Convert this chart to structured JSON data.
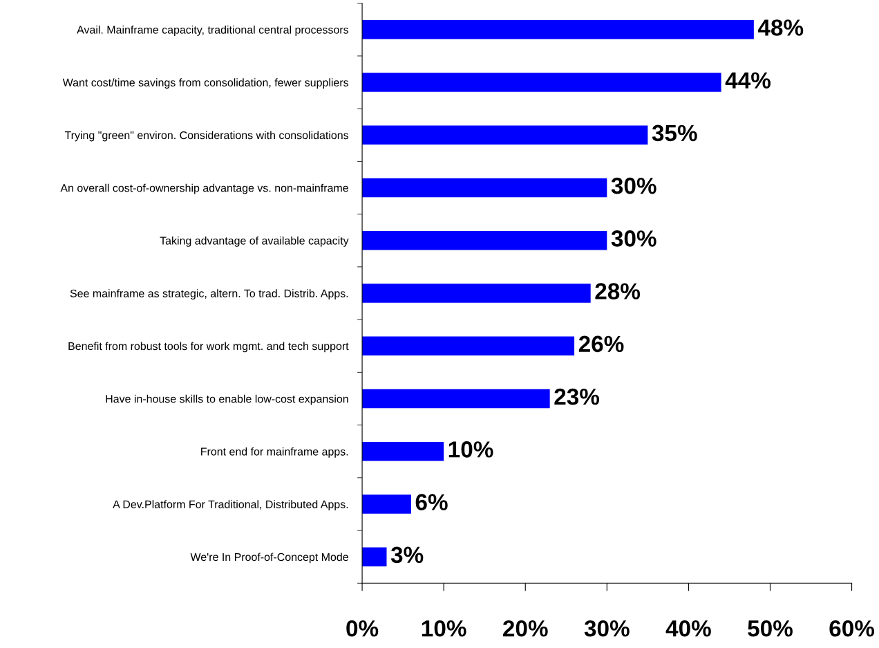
{
  "chart_data": {
    "type": "bar",
    "orientation": "horizontal",
    "categories": [
      "Avail. Mainframe capacity, traditional central processors",
      "Want cost/time savings from consolidation, fewer suppliers",
      "Trying \"green\" environ. Considerations with consolidations",
      "An overall cost-of-ownership advantage vs. non-mainframe",
      "Taking advantage of available capacity",
      "See mainframe as strategic, altern. To trad. Distrib. Apps.",
      "Benefit from robust tools for work mgmt. and tech support",
      "Have in-house skills to enable low-cost expansion",
      "Front end for mainframe apps.",
      "A Dev.Platform For Traditional, Distributed Apps.",
      "We're In Proof-of-Concept Mode"
    ],
    "values": [
      48,
      44,
      35,
      30,
      30,
      28,
      26,
      23,
      10,
      6,
      3
    ],
    "value_labels": [
      "48%",
      "44%",
      "35%",
      "30%",
      "30%",
      "28%",
      "26%",
      "23%",
      "10%",
      "6%",
      "3%"
    ],
    "color": "#0000ff",
    "xlim": [
      0,
      60
    ],
    "xticks": [
      {
        "value": 0,
        "label": "0%"
      },
      {
        "value": 10,
        "label": "10%"
      },
      {
        "value": 20,
        "label": "20%"
      },
      {
        "value": 30,
        "label": "30%"
      },
      {
        "value": 40,
        "label": "40%"
      },
      {
        "value": 50,
        "label": "50%"
      },
      {
        "value": 60,
        "label": "60%"
      }
    ],
    "grid": false,
    "legend": false
  }
}
